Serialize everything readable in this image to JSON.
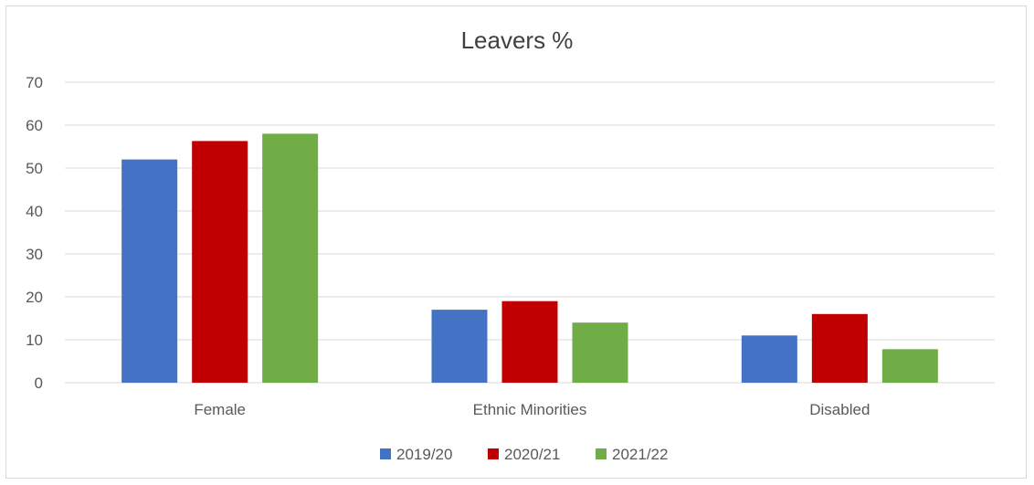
{
  "chart_data": {
    "type": "bar",
    "title": "Leavers %",
    "categories": [
      "Female",
      "Ethnic Minorities",
      "Disabled"
    ],
    "series": [
      {
        "name": "2019/20",
        "color": "#4472C4",
        "values": [
          52,
          17,
          11
        ]
      },
      {
        "name": "2020/21",
        "color": "#C00000",
        "values": [
          56.3,
          19,
          16
        ]
      },
      {
        "name": "2021/22",
        "color": "#70AD47",
        "values": [
          58,
          14,
          7.8
        ]
      }
    ],
    "ylim": [
      0,
      70
    ],
    "yticks": [
      "0",
      "10",
      "20",
      "30",
      "40",
      "50",
      "60",
      "70"
    ],
    "grid": true,
    "legend": "bottom"
  }
}
